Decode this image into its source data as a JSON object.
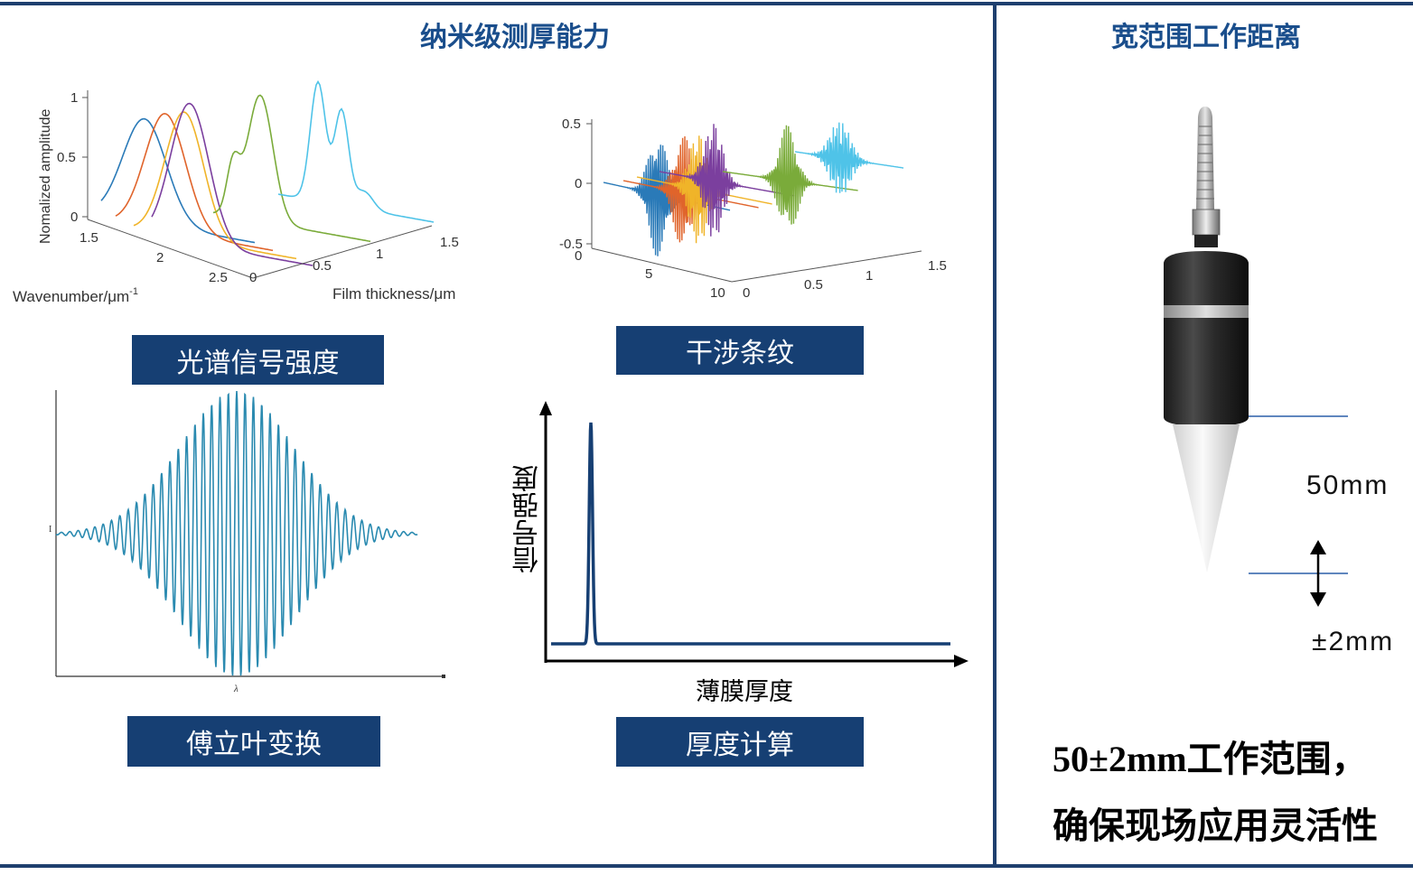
{
  "titles": {
    "left": "纳米级测厚能力",
    "right": "宽范围工作距离"
  },
  "labels": {
    "spectrum": "光谱信号强度",
    "interference": "干涉条纹",
    "fourier": "傅立叶变换",
    "thickness": "厚度计算"
  },
  "spectrum_plot": {
    "ylabel": "Nomalized amplitude",
    "xlabel": "Wavenumber/μm",
    "xlabel_sup": "-1",
    "zlabel": "Film thickness/μm",
    "yticks": [
      "1",
      "0.5",
      "0"
    ],
    "xticks": [
      "1.5",
      "2",
      "2.5"
    ],
    "zticks": [
      "0",
      "0.5",
      "1",
      "1.5"
    ],
    "colors": [
      "#2a7ab8",
      "#e0642b",
      "#f0b429",
      "#7b3f9e",
      "#7aab3a",
      "#4fc3e8"
    ]
  },
  "interference_plot": {
    "yticks": [
      "0.5",
      "0",
      "-0.5"
    ],
    "xticks": [
      "0",
      "5",
      "10"
    ],
    "zticks": [
      "0",
      "0.5",
      "1",
      "1.5"
    ],
    "colors": [
      "#2a7ab8",
      "#e0642b",
      "#f0b429",
      "#7b3f9e",
      "#7aab3a",
      "#4fc3e8"
    ]
  },
  "fourier_plot": {
    "ylabel": "I",
    "xlabel": "λ",
    "color": "#2a8ab0"
  },
  "thickness_plot": {
    "ylabel": "信号强度",
    "xlabel": "薄膜厚度",
    "color": "#163f73"
  },
  "probe": {
    "distance": "50mm",
    "tolerance": "±2mm"
  },
  "summary": {
    "line1": "50±2mm工作范围，",
    "line2": "确保现场应用灵活性"
  }
}
